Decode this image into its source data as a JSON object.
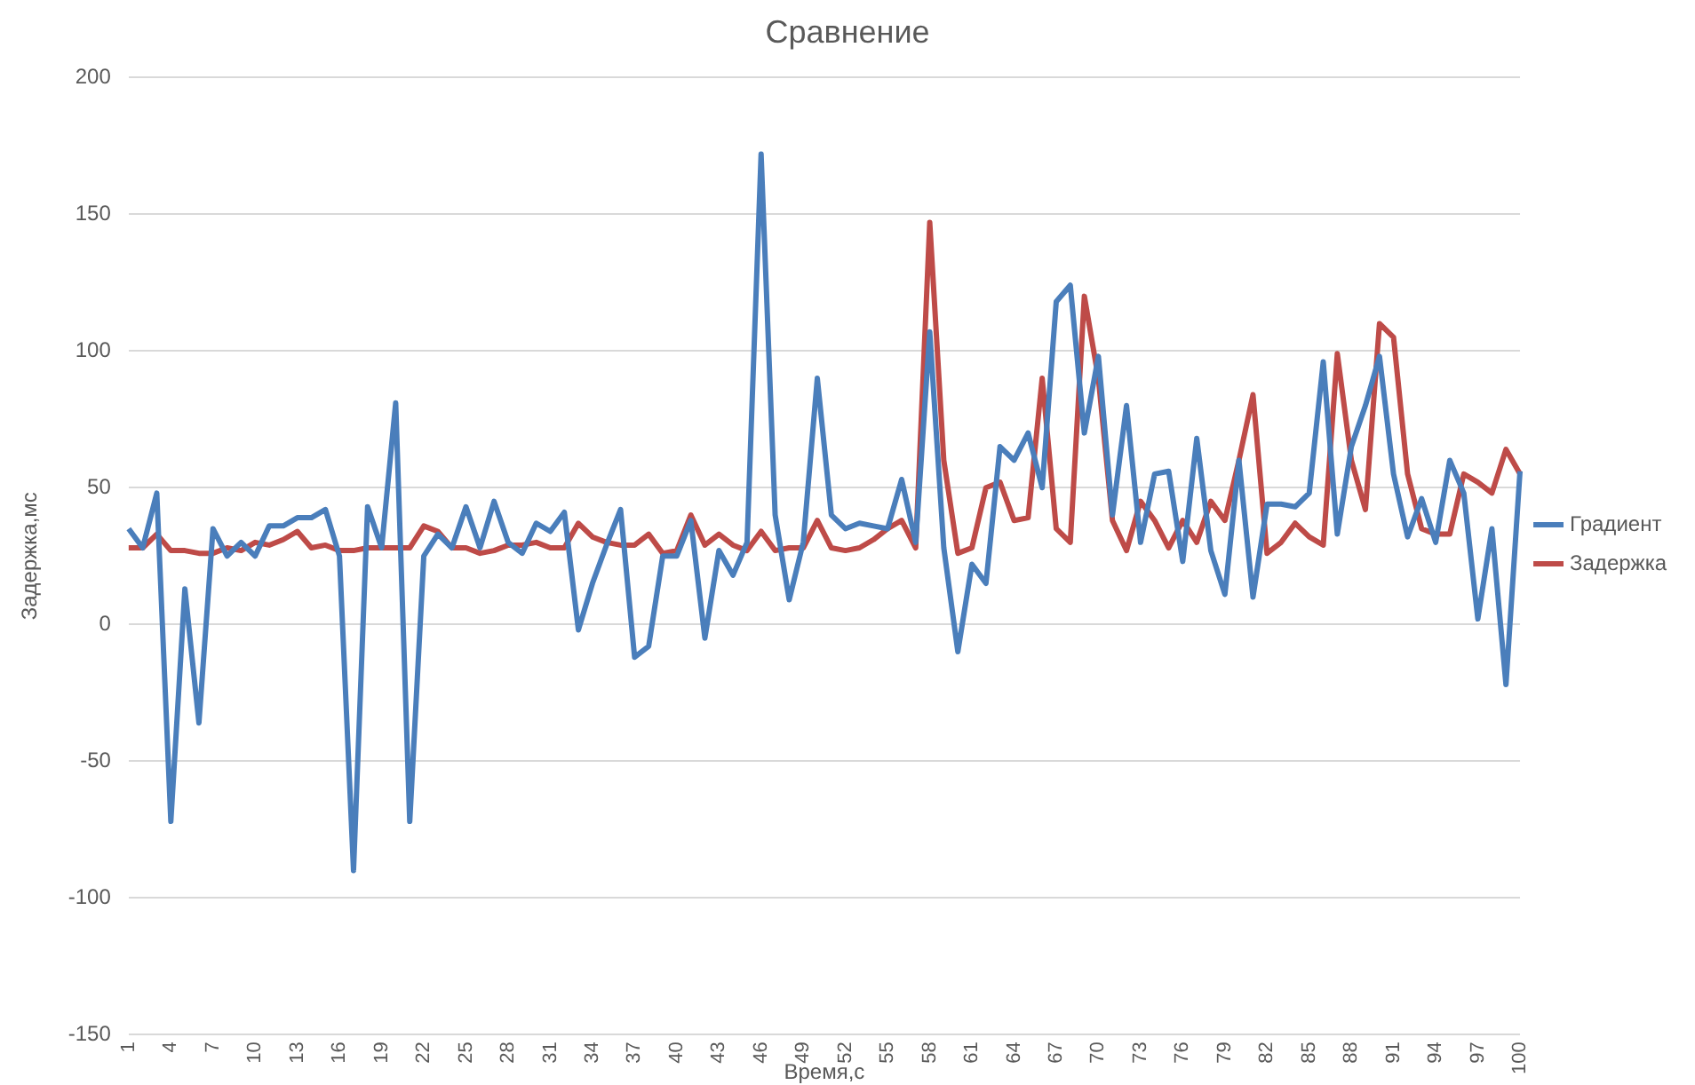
{
  "chart_data": {
    "type": "line",
    "title": "Сравнение",
    "xlabel": "Время,с",
    "ylabel": "Задержка,мс",
    "categories": [
      "1",
      null,
      null,
      "4",
      null,
      null,
      "7",
      null,
      null,
      "10",
      null,
      null,
      "13",
      null,
      null,
      "16",
      null,
      null,
      "19",
      null,
      null,
      "22",
      null,
      null,
      "25",
      null,
      null,
      "28",
      null,
      null,
      "31",
      null,
      null,
      "34",
      null,
      null,
      "37",
      null,
      null,
      "40",
      null,
      null,
      "43",
      null,
      null,
      "46",
      null,
      null,
      "49",
      null,
      null,
      "52",
      null,
      null,
      "55",
      null,
      null,
      "58",
      null,
      null,
      "61",
      null,
      null,
      "64",
      null,
      null,
      "67",
      null,
      null,
      "70",
      null,
      null,
      "73",
      null,
      null,
      "76",
      null,
      null,
      "79",
      null,
      null,
      "82",
      null,
      null,
      "85",
      null,
      null,
      "88",
      null,
      null,
      "91",
      null,
      null,
      "94",
      null,
      null,
      "97",
      null,
      null,
      "100"
    ],
    "series": [
      {
        "name": "Градиент",
        "color": "#4a7ebb",
        "values": [
          35,
          28,
          48,
          -72,
          13,
          -36,
          35,
          25,
          30,
          25,
          36,
          36,
          39,
          39,
          42,
          25,
          -90,
          43,
          28,
          81,
          -72,
          25,
          33,
          28,
          43,
          28,
          45,
          30,
          26,
          37,
          34,
          41,
          -2,
          15,
          29,
          42,
          -12,
          -8,
          25,
          25,
          38,
          -5,
          27,
          18,
          30,
          172,
          40,
          9,
          30,
          90,
          40,
          35,
          37,
          36,
          35,
          53,
          30,
          107,
          28,
          -10,
          22,
          15,
          65,
          60,
          70,
          50,
          118,
          124,
          70,
          98,
          40,
          80,
          30,
          55,
          56,
          23,
          68,
          27,
          11,
          60,
          10,
          44,
          44,
          43,
          48,
          96,
          33,
          65,
          80,
          98,
          55,
          32,
          46,
          30,
          60,
          48,
          2,
          35,
          -22,
          56
        ]
      },
      {
        "name": "Задержка",
        "color": "#be4b48",
        "values": [
          28,
          28,
          33,
          27,
          27,
          26,
          26,
          28,
          27,
          30,
          29,
          31,
          34,
          28,
          29,
          27,
          27,
          28,
          28,
          28,
          28,
          36,
          34,
          28,
          28,
          26,
          27,
          29,
          29,
          30,
          28,
          28,
          37,
          32,
          30,
          29,
          29,
          33,
          26,
          27,
          40,
          29,
          33,
          29,
          27,
          34,
          27,
          28,
          28,
          38,
          28,
          27,
          28,
          31,
          35,
          38,
          28,
          147,
          60,
          26,
          28,
          50,
          52,
          38,
          39,
          90,
          35,
          30,
          120,
          90,
          38,
          27,
          45,
          38,
          28,
          38,
          30,
          45,
          38,
          60,
          84,
          26,
          30,
          37,
          32,
          29,
          99,
          60,
          42,
          110,
          105,
          55,
          35,
          33,
          33,
          55,
          52,
          48,
          64,
          55
        ]
      }
    ],
    "ylim": [
      -150,
      200
    ],
    "yticks": [
      -150,
      -100,
      -50,
      0,
      50,
      100,
      150,
      200
    ],
    "grid": "y",
    "legend": "right",
    "marker": "none",
    "line_style": "solid"
  }
}
